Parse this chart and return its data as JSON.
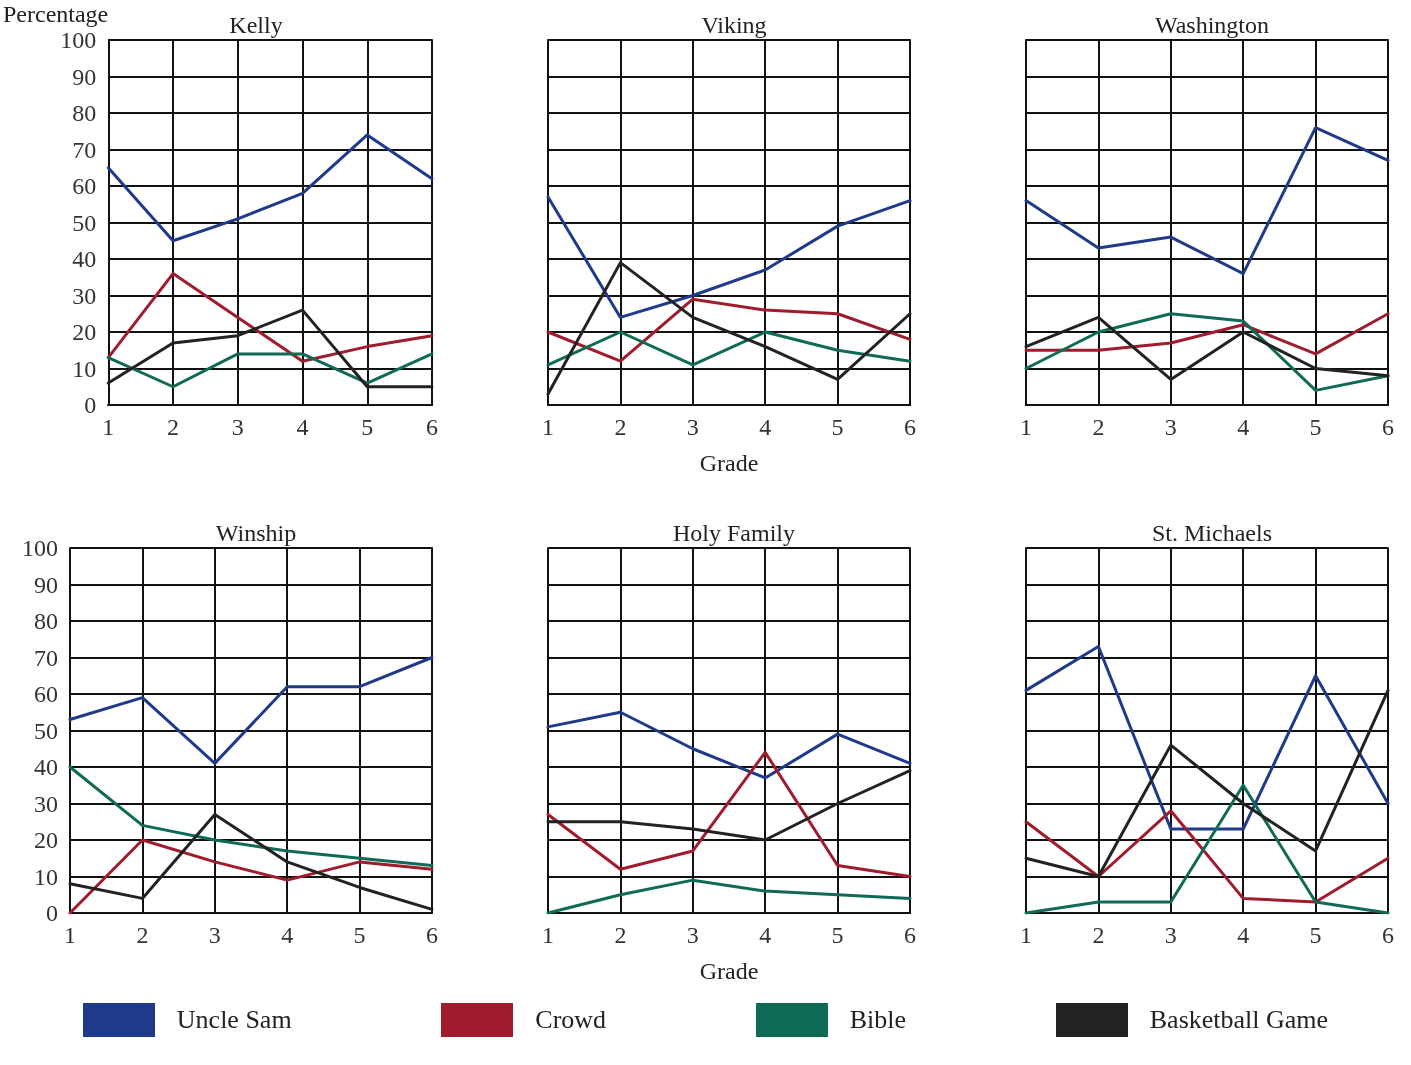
{
  "chart_data": [
    {
      "type": "line",
      "title": "Kelly",
      "ylabel": "Percentage",
      "categories": [
        "1",
        "2",
        "3",
        "4",
        "5",
        "6"
      ],
      "ylim": [
        0,
        100
      ],
      "yticks": [
        0,
        10,
        20,
        30,
        40,
        50,
        60,
        70,
        80,
        90,
        100
      ],
      "grid": true,
      "legend": "bottom",
      "series": [
        {
          "name": "Uncle Sam",
          "color": "#1f3a8a",
          "values": [
            65,
            45,
            51,
            58,
            74,
            62
          ]
        },
        {
          "name": "Crowd",
          "color": "#a01c2c",
          "values": [
            13,
            36,
            24,
            12,
            16,
            19
          ]
        },
        {
          "name": "Bible",
          "color": "#0f6b55",
          "values": [
            13,
            5,
            14,
            14,
            6,
            14
          ]
        },
        {
          "name": "Basketball Game",
          "color": "#222222",
          "values": [
            6,
            17,
            19,
            26,
            5,
            5
          ]
        }
      ]
    },
    {
      "type": "line",
      "title": "Viking",
      "xlabel": "Grade",
      "categories": [
        "1",
        "2",
        "3",
        "4",
        "5",
        "6"
      ],
      "ylim": [
        0,
        100
      ],
      "yticks": [
        0,
        10,
        20,
        30,
        40,
        50,
        60,
        70,
        80,
        90,
        100
      ],
      "grid": true,
      "legend": "bottom",
      "tick_labels": "x",
      "series": [
        {
          "name": "Uncle Sam",
          "color": "#1f3a8a",
          "values": [
            57,
            24,
            30,
            37,
            49,
            56
          ]
        },
        {
          "name": "Crowd",
          "color": "#a01c2c",
          "values": [
            20,
            12,
            29,
            26,
            25,
            18
          ]
        },
        {
          "name": "Bible",
          "color": "#0f6b55",
          "values": [
            11,
            20,
            11,
            20,
            15,
            12
          ]
        },
        {
          "name": "Basketball Game",
          "color": "#222222",
          "values": [
            3,
            39,
            24,
            16,
            7,
            25
          ]
        }
      ]
    },
    {
      "type": "line",
      "title": "Washington",
      "categories": [
        "1",
        "2",
        "3",
        "4",
        "5",
        "6"
      ],
      "ylim": [
        0,
        100
      ],
      "yticks": [
        0,
        10,
        20,
        30,
        40,
        50,
        60,
        70,
        80,
        90,
        100
      ],
      "grid": true,
      "legend": "bottom",
      "tick_labels": "x",
      "series": [
        {
          "name": "Uncle Sam",
          "color": "#1f3a8a",
          "values": [
            56,
            43,
            46,
            36,
            76,
            67
          ]
        },
        {
          "name": "Crowd",
          "color": "#a01c2c",
          "values": [
            15,
            15,
            17,
            22,
            14,
            25
          ]
        },
        {
          "name": "Bible",
          "color": "#0f6b55",
          "values": [
            10,
            20,
            25,
            23,
            4,
            8
          ]
        },
        {
          "name": "Basketball Game",
          "color": "#222222",
          "values": [
            16,
            24,
            7,
            20,
            10,
            8
          ]
        }
      ]
    },
    {
      "type": "line",
      "title": "Winship",
      "categories": [
        "1",
        "2",
        "3",
        "4",
        "5",
        "6"
      ],
      "ylim": [
        0,
        100
      ],
      "yticks": [
        0,
        10,
        20,
        30,
        40,
        50,
        60,
        70,
        80,
        90,
        100
      ],
      "grid": true,
      "legend": "bottom",
      "series": [
        {
          "name": "Uncle Sam",
          "color": "#1f3a8a",
          "values": [
            53,
            59,
            41,
            62,
            62,
            70
          ]
        },
        {
          "name": "Crowd",
          "color": "#a01c2c",
          "values": [
            0,
            20,
            14,
            9,
            14,
            12
          ]
        },
        {
          "name": "Bible",
          "color": "#0f6b55",
          "values": [
            40,
            24,
            20,
            17,
            15,
            13
          ]
        },
        {
          "name": "Basketball Game",
          "color": "#222222",
          "values": [
            8,
            4,
            27,
            14,
            7,
            1
          ]
        }
      ]
    },
    {
      "type": "line",
      "title": "Holy Family",
      "xlabel": "Grade",
      "categories": [
        "1",
        "2",
        "3",
        "4",
        "5",
        "6"
      ],
      "ylim": [
        0,
        100
      ],
      "yticks": [
        0,
        10,
        20,
        30,
        40,
        50,
        60,
        70,
        80,
        90,
        100
      ],
      "grid": true,
      "legend": "bottom",
      "tick_labels": "x",
      "series": [
        {
          "name": "Uncle Sam",
          "color": "#1f3a8a",
          "values": [
            51,
            55,
            45,
            37,
            49,
            41
          ]
        },
        {
          "name": "Crowd",
          "color": "#a01c2c",
          "values": [
            27,
            12,
            17,
            44,
            13,
            10
          ]
        },
        {
          "name": "Bible",
          "color": "#0f6b55",
          "values": [
            0,
            5,
            9,
            6,
            5,
            4
          ]
        },
        {
          "name": "Basketball Game",
          "color": "#222222",
          "values": [
            25,
            25,
            23,
            20,
            30,
            39
          ]
        }
      ]
    },
    {
      "type": "line",
      "title": "St. Michaels",
      "categories": [
        "1",
        "2",
        "3",
        "4",
        "5",
        "6"
      ],
      "ylim": [
        0,
        100
      ],
      "yticks": [
        0,
        10,
        20,
        30,
        40,
        50,
        60,
        70,
        80,
        90,
        100
      ],
      "grid": true,
      "legend": "bottom",
      "tick_labels": "x",
      "series": [
        {
          "name": "Uncle Sam",
          "color": "#1f3a8a",
          "values": [
            61,
            73,
            23,
            23,
            65,
            30
          ]
        },
        {
          "name": "Crowd",
          "color": "#a01c2c",
          "values": [
            25,
            10,
            28,
            4,
            3,
            15
          ]
        },
        {
          "name": "Bible",
          "color": "#0f6b55",
          "values": [
            0,
            3,
            3,
            35,
            3,
            0
          ]
        },
        {
          "name": "Basketball Game",
          "color": "#222222",
          "values": [
            15,
            10,
            46,
            30,
            17,
            61
          ]
        }
      ]
    }
  ]
}
